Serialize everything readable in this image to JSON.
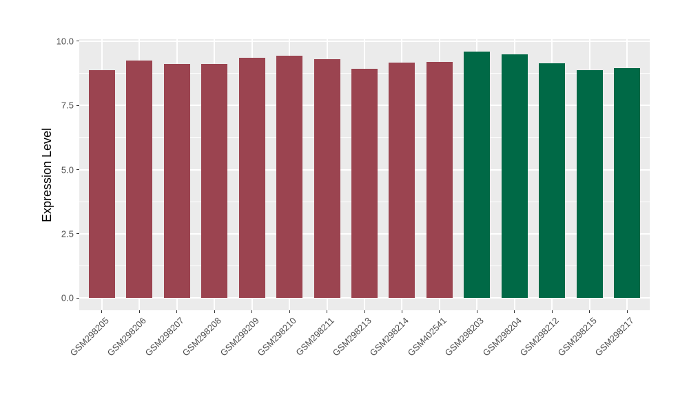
{
  "chart_data": {
    "type": "bar",
    "title": "",
    "xlabel": "",
    "ylabel": "Expression Level",
    "categories": [
      "GSM298205",
      "GSM298206",
      "GSM298207",
      "GSM298208",
      "GSM298209",
      "GSM298210",
      "GSM298211",
      "GSM298213",
      "GSM298214",
      "GSM402541",
      "GSM298203",
      "GSM298204",
      "GSM298212",
      "GSM298215",
      "GSM298217"
    ],
    "values": [
      8.88,
      9.25,
      9.11,
      9.12,
      9.36,
      9.44,
      9.31,
      8.93,
      9.17,
      9.2,
      9.6,
      9.49,
      9.14,
      8.88,
      8.95
    ],
    "bar_groups": [
      "red",
      "red",
      "red",
      "red",
      "red",
      "red",
      "red",
      "red",
      "red",
      "red",
      "green",
      "green",
      "green",
      "green",
      "green"
    ],
    "group_colors": {
      "red": "#9B4450",
      "green": "#006946"
    },
    "ylim": [
      0,
      10.08
    ],
    "yticks": {
      "major": [
        0,
        2.5,
        5,
        7.5,
        10
      ],
      "labels": [
        "0.0",
        "2.5",
        "5.0",
        "7.5",
        "10.0"
      ],
      "minor": [
        1.25,
        3.75,
        6.25,
        8.75
      ]
    },
    "x_tick_angle_deg": 45,
    "legend": "none",
    "grid": "horizontal major+minor, vertical major per category",
    "panel_background": "#EBEBEB",
    "gridline_color": "#FFFFFF",
    "axis_text_color": "#4D4D4D",
    "tick_mark_color": "#333333",
    "axis_title_color": "#000000"
  }
}
